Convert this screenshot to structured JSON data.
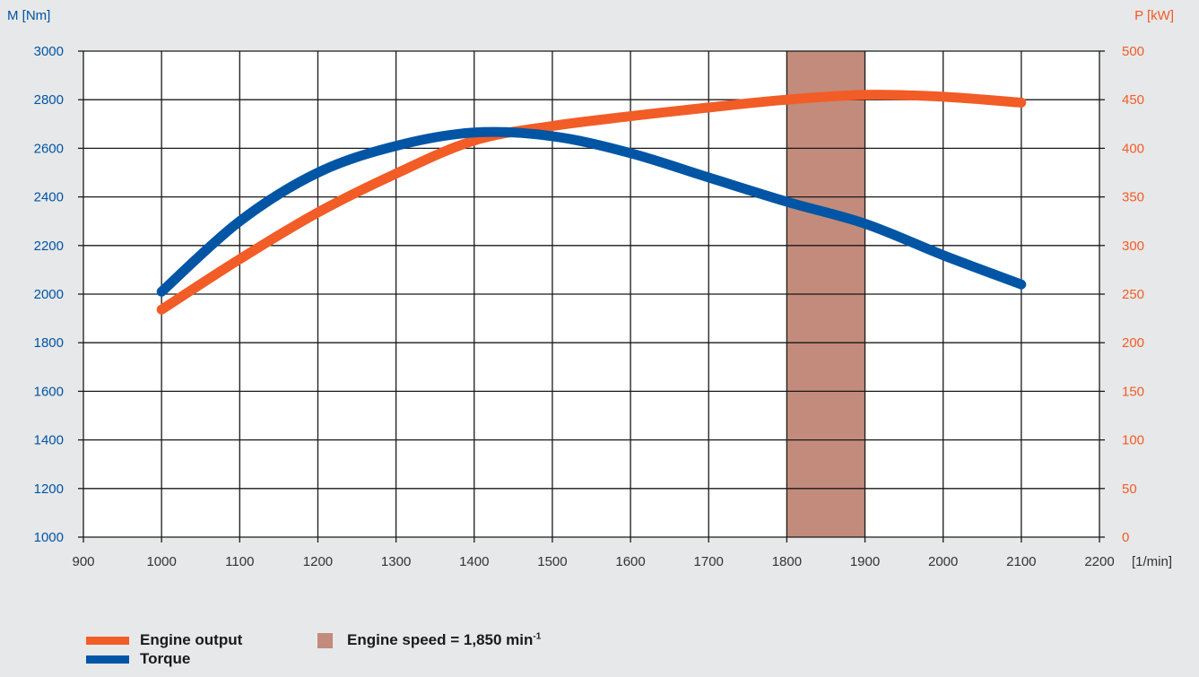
{
  "chart_data": {
    "type": "line",
    "x_unit": "[1/min]",
    "y_left_unit": "M [Nm]",
    "y_right_unit": "P [kW]",
    "xlim": [
      900,
      2200
    ],
    "x_ticks": [
      "900",
      "1000",
      "1100",
      "1200",
      "1300",
      "1400",
      "1500",
      "1600",
      "1700",
      "1800",
      "1900",
      "2000",
      "2100",
      "2200"
    ],
    "y_left_lim": [
      1000,
      3000
    ],
    "y_left_ticks": [
      "1000",
      "1200",
      "1400",
      "1600",
      "1800",
      "2000",
      "2200",
      "2400",
      "2600",
      "2800",
      "3000"
    ],
    "y_right_lim": [
      0,
      500
    ],
    "y_right_ticks": [
      "0",
      "50",
      "100",
      "150",
      "200",
      "250",
      "300",
      "350",
      "400",
      "450",
      "500"
    ],
    "grid": true,
    "highlight_band": {
      "x_start": 1800,
      "x_end": 1900,
      "color": "#c28b7b"
    },
    "series": [
      {
        "name": "Engine output",
        "axis": "right",
        "color": "#f25c26",
        "x": [
          1000,
          1100,
          1200,
          1300,
          1400,
          1500,
          1600,
          1700,
          1800,
          1900,
          2000,
          2100
        ],
        "values": [
          234,
          286,
          334,
          374,
          408,
          423,
          433,
          442,
          450,
          455,
          453,
          447
        ]
      },
      {
        "name": "Torque",
        "axis": "left",
        "color": "#0055a4",
        "x": [
          1000,
          1100,
          1200,
          1300,
          1400,
          1500,
          1600,
          1700,
          1800,
          1900,
          2000,
          2100
        ],
        "values": [
          2010,
          2300,
          2500,
          2610,
          2665,
          2650,
          2580,
          2480,
          2380,
          2290,
          2160,
          2040
        ]
      }
    ]
  },
  "legend": {
    "engine_output": "Engine output",
    "torque": "Torque",
    "engine_speed": "Engine speed = 1,850 min",
    "engine_speed_sup": "-1"
  },
  "colors": {
    "left_axis_text": "#0055a4",
    "right_axis_text": "#f25c26",
    "grid": "#1a1a1a"
  }
}
